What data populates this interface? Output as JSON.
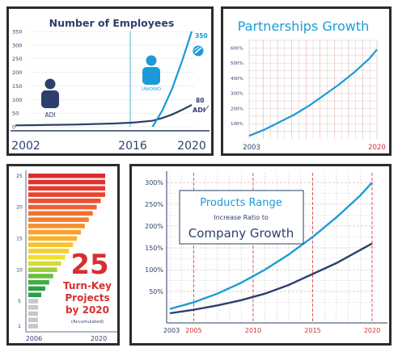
{
  "colors": {
    "navy": "#2d3f6b",
    "blue": "#1a9bd7",
    "red": "#d62f2f",
    "grid": "#d9a0a0",
    "gridLight": "#e3c6c6"
  },
  "chart_data": [
    {
      "id": "employees",
      "type": "line",
      "title": "Number of Employees",
      "ylim": [
        0,
        350
      ],
      "yticks": [
        "0",
        "50",
        "100",
        "150",
        "200",
        "250",
        "300",
        "350"
      ],
      "xticks": [
        "2002",
        "2016",
        "2020"
      ],
      "series": [
        {
          "name": "ADI",
          "x": [
            2002,
            2004,
            2006,
            2008,
            2010,
            2012,
            2014,
            2016,
            2017,
            2018,
            2019,
            2020
          ],
          "values": [
            5,
            6,
            7,
            8,
            10,
            12,
            15,
            22,
            32,
            45,
            62,
            80
          ],
          "end_label": "80"
        },
        {
          "name": "UNIONIO",
          "x": [
            2016,
            2017,
            2018,
            2019,
            2020
          ],
          "values": [
            0,
            60,
            140,
            240,
            350
          ],
          "end_label": "350"
        }
      ],
      "icon_labels": {
        "adi": "ADI",
        "unionio": "UNIONIO",
        "adi_end": "ADI"
      }
    },
    {
      "id": "partnerships",
      "type": "line",
      "title": "Partnerships Growth",
      "ylim": [
        0,
        650
      ],
      "yticks": [
        "100%",
        "200%",
        "300%",
        "400%",
        "500%",
        "600%"
      ],
      "xticks": [
        "2003",
        "2020"
      ],
      "series": [
        {
          "x": [
            2003,
            2005,
            2007,
            2009,
            2011,
            2013,
            2015,
            2017,
            2019,
            2020
          ],
          "values": [
            20,
            60,
            110,
            160,
            220,
            290,
            360,
            440,
            530,
            590
          ]
        }
      ]
    },
    {
      "id": "projects",
      "type": "bar",
      "yticks": [
        "1",
        "5",
        "10",
        "15",
        "20",
        "25"
      ],
      "xticks": [
        "2006",
        "2020"
      ],
      "bar_count": 25,
      "bar_colors_bottom_to_top": [
        "#c8c8c8",
        "#c8c8c8",
        "#c8c8c8",
        "#c8c8c8",
        "#c8c8c8",
        "#2e9e49",
        "#2e9e49",
        "#3fae45",
        "#6cbd3f",
        "#9fce3a",
        "#d3dc32",
        "#f1df2c",
        "#f6cf29",
        "#f8c12a",
        "#f8b12b",
        "#f8a02c",
        "#f6902d",
        "#f4802e",
        "#f2702f",
        "#ef6030",
        "#ec5030",
        "#e94330",
        "#e63830",
        "#e2302f",
        "#de2a2e"
      ],
      "big_number": "25",
      "caption_line1": "Turn-Key",
      "caption_line2": "Projects",
      "caption_line3": "by 2020",
      "caption_note": "(Accumulated)"
    },
    {
      "id": "products",
      "type": "line",
      "title": "Products Range",
      "subtitle": "Increase Ratio to",
      "title_line3": "Company Growth",
      "ylim": [
        0,
        300
      ],
      "yticks": [
        "50%",
        "100%",
        "150%",
        "200%",
        "250%",
        "300%"
      ],
      "xticks": [
        "2003",
        "2005",
        "2010",
        "2015",
        "2020"
      ],
      "series": [
        {
          "x": [
            2003,
            2005,
            2007,
            2009,
            2011,
            2013,
            2015,
            2017,
            2019,
            2020
          ],
          "values": [
            10,
            25,
            45,
            70,
            100,
            135,
            175,
            220,
            270,
            300
          ]
        },
        {
          "x": [
            2003,
            2005,
            2007,
            2009,
            2011,
            2013,
            2015,
            2017,
            2019,
            2020
          ],
          "values": [
            0,
            8,
            18,
            30,
            45,
            65,
            90,
            115,
            145,
            160
          ]
        }
      ]
    }
  ]
}
